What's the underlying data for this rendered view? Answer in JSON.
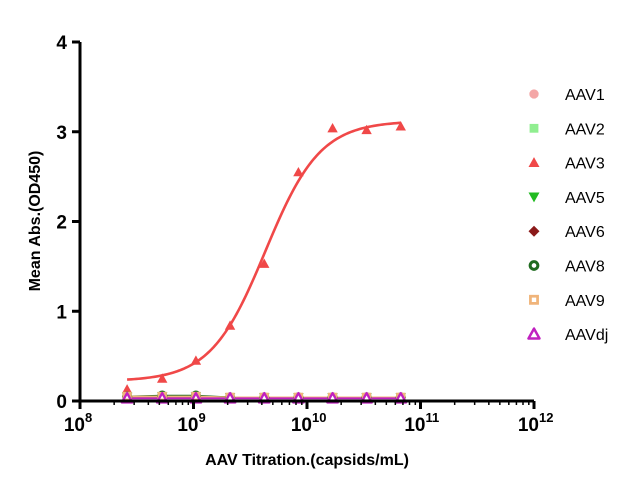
{
  "chart_data": {
    "type": "scatter",
    "title": "",
    "xlabel": "AAV Titration.(capsids/mL)",
    "ylabel": "Mean Abs.(OD450)",
    "x_scale": "log10",
    "xlim": [
      100000000,
      1000000000000
    ],
    "ylim": [
      0,
      4
    ],
    "x_ticks": [
      {
        "base": "10",
        "exp": "8",
        "value": 100000000
      },
      {
        "base": "10",
        "exp": "9",
        "value": 1000000000
      },
      {
        "base": "10",
        "exp": "10",
        "value": 10000000000
      },
      {
        "base": "10",
        "exp": "11",
        "value": 100000000000
      },
      {
        "base": "10",
        "exp": "12",
        "value": 1000000000000
      }
    ],
    "y_ticks": [
      {
        "label": "0",
        "value": 0
      },
      {
        "label": "1",
        "value": 1
      },
      {
        "label": "2",
        "value": 2
      },
      {
        "label": "3",
        "value": 3
      },
      {
        "label": "4",
        "value": 4
      }
    ],
    "grid": false,
    "legend_position": "right",
    "x": [
      260000000,
      530000000,
      1050000000,
      2100000000,
      4200000000,
      8400000000,
      16800000000,
      33500000000,
      67000000000
    ],
    "series": [
      {
        "name": "AAV1",
        "marker": "circle",
        "color": "#f4a6a6",
        "values": [
          0.05,
          0.05,
          0.05,
          0.04,
          0.04,
          0.04,
          0.04,
          0.04,
          0.04
        ]
      },
      {
        "name": "AAV2",
        "marker": "square",
        "color": "#90ee90",
        "values": [
          0.05,
          0.04,
          0.04,
          0.04,
          0.04,
          0.04,
          0.04,
          0.04,
          0.04
        ]
      },
      {
        "name": "AAV3",
        "marker": "triangle-up",
        "color": "#f04848",
        "values": [
          0.13,
          0.25,
          0.45,
          0.84,
          1.53,
          2.55,
          3.04,
          3.02,
          3.06
        ],
        "fit": {
          "bottom": 0.22,
          "top": 3.12,
          "ec50": 4300000000,
          "hill": 1.8
        }
      },
      {
        "name": "AAV5",
        "marker": "triangle-down",
        "color": "#22bb22",
        "values": [
          0.05,
          0.05,
          0.05,
          0.04,
          0.04,
          0.04,
          0.04,
          0.04,
          0.04
        ]
      },
      {
        "name": "AAV6",
        "marker": "diamond",
        "color": "#8b1a1a",
        "values": [
          0.05,
          0.05,
          0.05,
          0.04,
          0.04,
          0.04,
          0.04,
          0.04,
          0.04
        ]
      },
      {
        "name": "AAV8",
        "marker": "ring",
        "color": "#1f6b1f",
        "values": [
          0.05,
          0.06,
          0.06,
          0.04,
          0.04,
          0.04,
          0.04,
          0.04,
          0.04
        ]
      },
      {
        "name": "AAV9",
        "marker": "square-hollow",
        "color": "#f0b47a",
        "values": [
          0.05,
          0.05,
          0.05,
          0.04,
          0.04,
          0.04,
          0.04,
          0.04,
          0.04
        ]
      },
      {
        "name": "AAVdj",
        "marker": "triangle-hollow",
        "color": "#c020c0",
        "values": [
          0.03,
          0.03,
          0.03,
          0.03,
          0.03,
          0.03,
          0.03,
          0.03,
          0.03
        ]
      }
    ]
  }
}
